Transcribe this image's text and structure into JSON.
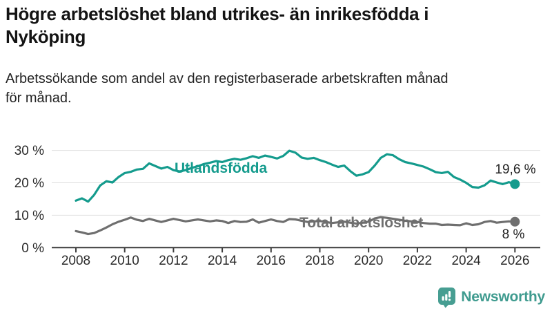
{
  "header": {
    "title": "Högre arbetslöshet bland utrikes- än inrikesfödda i\nNyköping",
    "subtitle": "Arbetssökande som andel av den registerbaserade arbetskraften månad\nför månad."
  },
  "branding": {
    "logo_text": "Newsworthy",
    "logo_icon": "bar-chart-speech-bubble-icon",
    "logo_color": "#479e92"
  },
  "colors": {
    "series_foreign_born": "#149b8d",
    "series_total": "#6f6f6f",
    "axis": "#3d3d3d",
    "gridline": "#dedede",
    "tick_label": "#2b2b2b",
    "annotation": "#222222"
  },
  "chart_data": {
    "type": "line",
    "title": "",
    "xlabel": "",
    "ylabel": "",
    "x_ticks": [
      2008,
      2010,
      2012,
      2014,
      2016,
      2018,
      2020,
      2022,
      2024,
      2026
    ],
    "y_ticks": [
      {
        "value": 0,
        "label": "0 %"
      },
      {
        "value": 10,
        "label": "10 %"
      },
      {
        "value": 20,
        "label": "20 %"
      },
      {
        "value": 30,
        "label": "30 %"
      }
    ],
    "xlim": [
      2008,
      2026
    ],
    "ylim": [
      0,
      32
    ],
    "grid": true,
    "legend_position": "inline-labels",
    "series": [
      {
        "name": "Utlandsfödda",
        "color": "#149b8d",
        "end_value": 19.6,
        "end_label": "19,6 %",
        "points": [
          [
            2008.0,
            14.5
          ],
          [
            2008.25,
            15.2
          ],
          [
            2008.5,
            14.2
          ],
          [
            2008.75,
            16.3
          ],
          [
            2009.0,
            19.2
          ],
          [
            2009.25,
            20.5
          ],
          [
            2009.5,
            20.1
          ],
          [
            2009.75,
            21.8
          ],
          [
            2010.0,
            23.0
          ],
          [
            2010.25,
            23.4
          ],
          [
            2010.5,
            24.1
          ],
          [
            2010.75,
            24.3
          ],
          [
            2011.0,
            26.0
          ],
          [
            2011.25,
            25.2
          ],
          [
            2011.5,
            24.4
          ],
          [
            2011.75,
            24.9
          ],
          [
            2012.0,
            23.9
          ],
          [
            2012.25,
            23.5
          ],
          [
            2012.5,
            23.9
          ],
          [
            2012.75,
            24.6
          ],
          [
            2013.0,
            25.1
          ],
          [
            2013.25,
            25.8
          ],
          [
            2013.5,
            26.2
          ],
          [
            2013.75,
            26.7
          ],
          [
            2014.0,
            26.4
          ],
          [
            2014.25,
            27.0
          ],
          [
            2014.5,
            27.4
          ],
          [
            2014.75,
            27.1
          ],
          [
            2015.0,
            27.6
          ],
          [
            2015.25,
            28.2
          ],
          [
            2015.5,
            27.7
          ],
          [
            2015.75,
            28.4
          ],
          [
            2016.0,
            28.0
          ],
          [
            2016.25,
            27.5
          ],
          [
            2016.5,
            28.3
          ],
          [
            2016.75,
            29.9
          ],
          [
            2017.0,
            29.3
          ],
          [
            2017.25,
            27.8
          ],
          [
            2017.5,
            27.4
          ],
          [
            2017.75,
            27.7
          ],
          [
            2018.0,
            27.0
          ],
          [
            2018.25,
            26.4
          ],
          [
            2018.5,
            25.6
          ],
          [
            2018.75,
            24.9
          ],
          [
            2019.0,
            25.3
          ],
          [
            2019.25,
            23.6
          ],
          [
            2019.5,
            22.2
          ],
          [
            2019.75,
            22.6
          ],
          [
            2020.0,
            23.3
          ],
          [
            2020.25,
            25.3
          ],
          [
            2020.5,
            27.7
          ],
          [
            2020.75,
            28.8
          ],
          [
            2021.0,
            28.5
          ],
          [
            2021.25,
            27.3
          ],
          [
            2021.5,
            26.4
          ],
          [
            2021.75,
            26.0
          ],
          [
            2022.0,
            25.5
          ],
          [
            2022.25,
            25.0
          ],
          [
            2022.5,
            24.2
          ],
          [
            2022.75,
            23.3
          ],
          [
            2023.0,
            23.0
          ],
          [
            2023.25,
            23.4
          ],
          [
            2023.5,
            21.8
          ],
          [
            2023.75,
            21.0
          ],
          [
            2024.0,
            20.0
          ],
          [
            2024.25,
            18.7
          ],
          [
            2024.5,
            18.5
          ],
          [
            2024.75,
            19.2
          ],
          [
            2025.0,
            20.7
          ],
          [
            2025.25,
            20.1
          ],
          [
            2025.5,
            19.6
          ],
          [
            2025.75,
            20.2
          ],
          [
            2026.0,
            19.6
          ]
        ]
      },
      {
        "name": "Total arbetslöshet",
        "color": "#6f6f6f",
        "end_value": 8,
        "end_label": "8 %",
        "points": [
          [
            2008.0,
            5.1
          ],
          [
            2008.25,
            4.7
          ],
          [
            2008.5,
            4.2
          ],
          [
            2008.75,
            4.5
          ],
          [
            2009.0,
            5.3
          ],
          [
            2009.25,
            6.2
          ],
          [
            2009.5,
            7.2
          ],
          [
            2009.75,
            8.0
          ],
          [
            2010.0,
            8.6
          ],
          [
            2010.25,
            9.3
          ],
          [
            2010.5,
            8.6
          ],
          [
            2010.75,
            8.2
          ],
          [
            2011.0,
            8.9
          ],
          [
            2011.25,
            8.4
          ],
          [
            2011.5,
            7.9
          ],
          [
            2011.75,
            8.4
          ],
          [
            2012.0,
            8.9
          ],
          [
            2012.25,
            8.5
          ],
          [
            2012.5,
            8.1
          ],
          [
            2012.75,
            8.4
          ],
          [
            2013.0,
            8.7
          ],
          [
            2013.25,
            8.4
          ],
          [
            2013.5,
            8.1
          ],
          [
            2013.75,
            8.4
          ],
          [
            2014.0,
            8.2
          ],
          [
            2014.25,
            7.6
          ],
          [
            2014.5,
            8.2
          ],
          [
            2014.75,
            7.9
          ],
          [
            2015.0,
            8.0
          ],
          [
            2015.25,
            8.7
          ],
          [
            2015.5,
            7.7
          ],
          [
            2015.75,
            8.2
          ],
          [
            2016.0,
            8.7
          ],
          [
            2016.25,
            8.2
          ],
          [
            2016.5,
            7.9
          ],
          [
            2016.75,
            8.8
          ],
          [
            2017.0,
            8.7
          ],
          [
            2017.25,
            8.3
          ],
          [
            2017.5,
            7.9
          ],
          [
            2017.75,
            8.1
          ],
          [
            2018.0,
            8.2
          ],
          [
            2018.25,
            7.9
          ],
          [
            2018.5,
            7.6
          ],
          [
            2018.75,
            7.8
          ],
          [
            2019.0,
            8.0
          ],
          [
            2019.25,
            7.7
          ],
          [
            2019.5,
            7.4
          ],
          [
            2019.75,
            7.7
          ],
          [
            2020.0,
            8.0
          ],
          [
            2020.25,
            9.0
          ],
          [
            2020.5,
            9.4
          ],
          [
            2020.75,
            9.2
          ],
          [
            2021.0,
            8.9
          ],
          [
            2021.25,
            8.6
          ],
          [
            2021.5,
            8.3
          ],
          [
            2021.75,
            8.1
          ],
          [
            2022.0,
            7.9
          ],
          [
            2022.25,
            7.6
          ],
          [
            2022.5,
            7.4
          ],
          [
            2022.75,
            7.4
          ],
          [
            2023.0,
            7.0
          ],
          [
            2023.25,
            7.1
          ],
          [
            2023.5,
            7.0
          ],
          [
            2023.75,
            6.9
          ],
          [
            2024.0,
            7.5
          ],
          [
            2024.25,
            7.0
          ],
          [
            2024.5,
            7.2
          ],
          [
            2024.75,
            7.9
          ],
          [
            2025.0,
            8.2
          ],
          [
            2025.25,
            7.7
          ],
          [
            2025.5,
            7.9
          ],
          [
            2025.75,
            8.1
          ],
          [
            2026.0,
            8.0
          ]
        ]
      }
    ]
  }
}
